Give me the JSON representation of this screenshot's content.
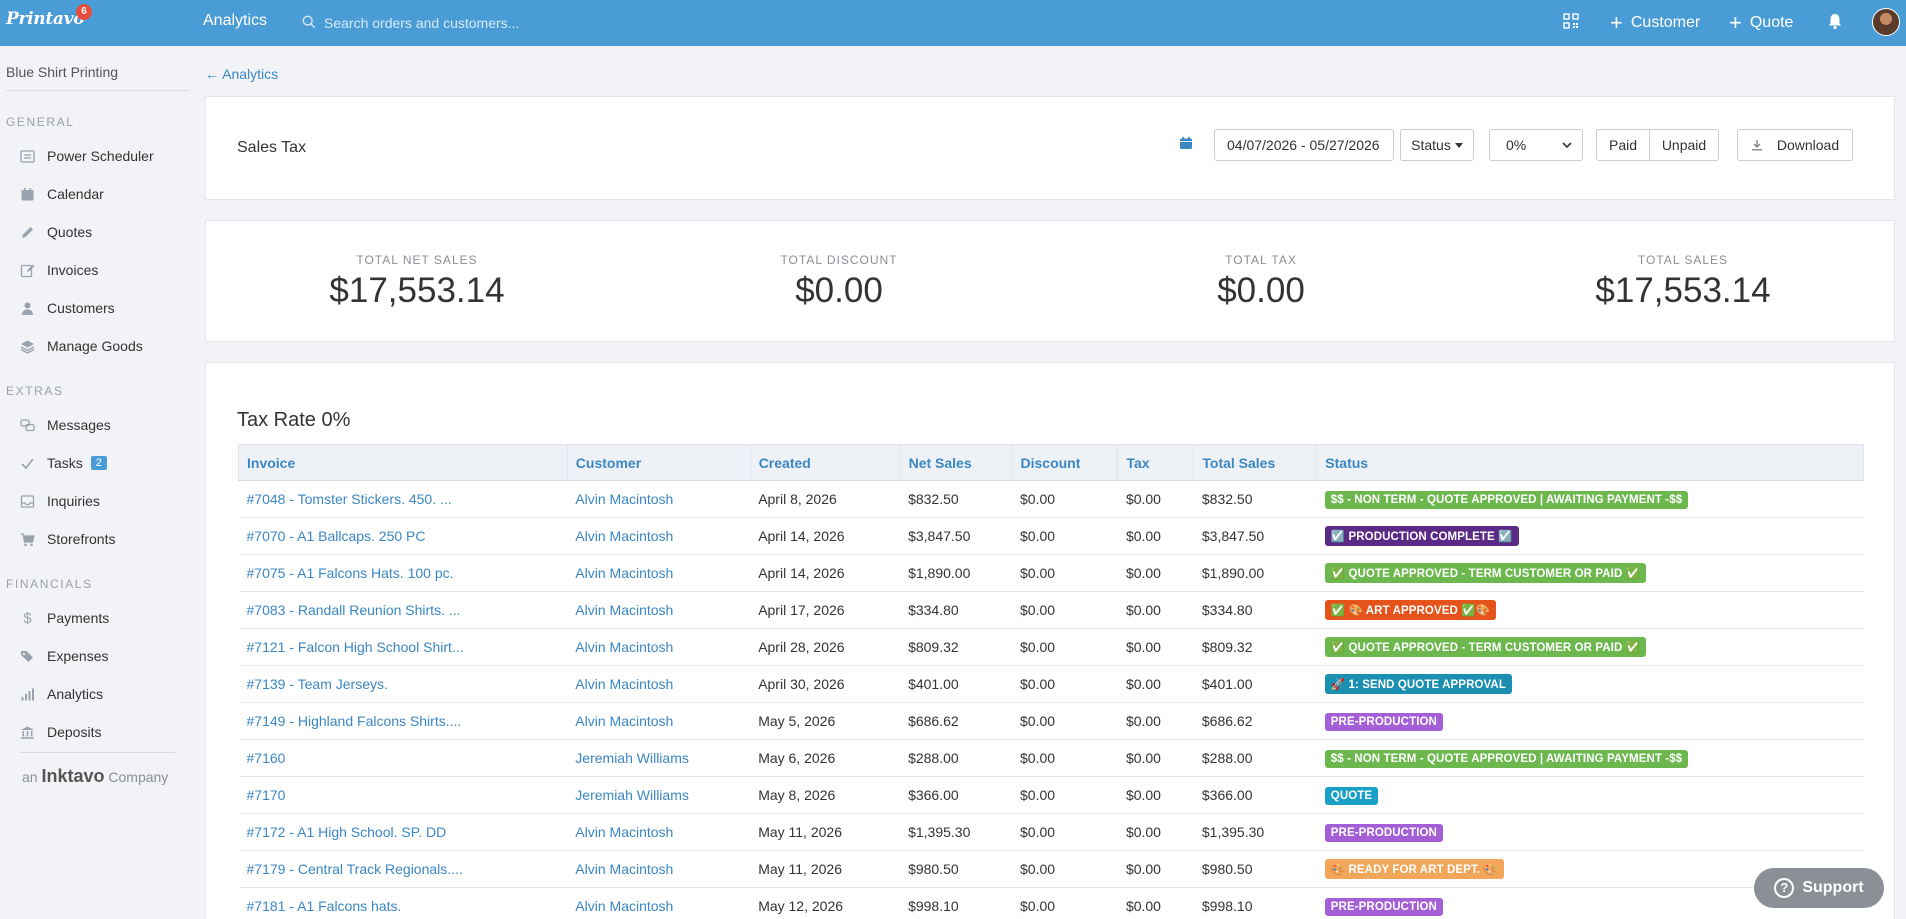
{
  "topbar": {
    "logo_text": "Printavo",
    "logo_badge": "6",
    "title": "Analytics",
    "search_placeholder": "Search orders and customers...",
    "customer_label": "Customer",
    "quote_label": "Quote"
  },
  "sidebar": {
    "org_name": "Blue Shirt Printing",
    "general_heading": "GENERAL",
    "general_items": [
      "Power Scheduler",
      "Calendar",
      "Quotes",
      "Invoices",
      "Customers",
      "Manage Goods"
    ],
    "extras_heading": "EXTRAS",
    "extras_items": [
      "Messages",
      "Tasks",
      "Inquiries",
      "Storefronts"
    ],
    "tasks_badge": "2",
    "financials_heading": "FINANCIALS",
    "financials_items": [
      "Payments",
      "Expenses",
      "Analytics",
      "Deposits"
    ],
    "company_prefix": "an",
    "company_name": "Inktavo",
    "company_suffix": "Company"
  },
  "back_link": "← Analytics",
  "header": {
    "title": "Sales Tax",
    "date_range": "04/07/2026 - 05/27/2026",
    "status_label": "Status",
    "tax_select_value": "0%",
    "paid_label": "Paid",
    "unpaid_label": "Unpaid",
    "download_label": "Download"
  },
  "totals": [
    {
      "label": "TOTAL NET SALES",
      "value": "$17,553.14"
    },
    {
      "label": "TOTAL DISCOUNT",
      "value": "$0.00"
    },
    {
      "label": "TOTAL TAX",
      "value": "$0.00"
    },
    {
      "label": "TOTAL SALES",
      "value": "$17,553.14"
    }
  ],
  "table": {
    "title": "Tax Rate 0%",
    "columns": [
      "Invoice",
      "Customer",
      "Created",
      "Net Sales",
      "Discount",
      "Tax",
      "Total Sales",
      "Status"
    ],
    "rows": [
      {
        "invoice": "#7048 - Tomster Stickers. 450. ...",
        "customer": "Alvin Macintosh",
        "created": "April 8, 2026",
        "net": "$832.50",
        "discount": "$0.00",
        "tax": "$0.00",
        "total": "$832.50",
        "status": "$$ - NON TERM - QUOTE APPROVED | AWAITING PAYMENT -$$",
        "status_color": "#6cb84e"
      },
      {
        "invoice": "#7070 - A1 Ballcaps. 250 PC",
        "customer": "Alvin Macintosh",
        "created": "April 14, 2026",
        "net": "$3,847.50",
        "discount": "$0.00",
        "tax": "$0.00",
        "total": "$3,847.50",
        "status": "☑️ PRODUCTION COMPLETE ☑️",
        "status_color": "#5b2a86"
      },
      {
        "invoice": "#7075 - A1 Falcons Hats. 100 pc.",
        "customer": "Alvin Macintosh",
        "created": "April 14, 2026",
        "net": "$1,890.00",
        "discount": "$0.00",
        "tax": "$0.00",
        "total": "$1,890.00",
        "status": "✅ QUOTE APPROVED - TERM CUSTOMER OR PAID ✅",
        "status_color": "#6cb84e"
      },
      {
        "invoice": "#7083 - Randall Reunion Shirts. ...",
        "customer": "Alvin Macintosh",
        "created": "April 17, 2026",
        "net": "$334.80",
        "discount": "$0.00",
        "tax": "$0.00",
        "total": "$334.80",
        "status": "✅ 🎨 ART APPROVED ✅🎨",
        "status_color": "#e5531a"
      },
      {
        "invoice": "#7121 - Falcon High School Shirt...",
        "customer": "Alvin Macintosh",
        "created": "April 28, 2026",
        "net": "$809.32",
        "discount": "$0.00",
        "tax": "$0.00",
        "total": "$809.32",
        "status": "✅ QUOTE APPROVED - TERM CUSTOMER OR PAID ✅",
        "status_color": "#6cb84e"
      },
      {
        "invoice": "#7139 - Team Jerseys.",
        "customer": "Alvin Macintosh",
        "created": "April 30, 2026",
        "net": "$401.00",
        "discount": "$0.00",
        "tax": "$0.00",
        "total": "$401.00",
        "status": "🚀 1: SEND QUOTE APPROVAL",
        "status_color": "#1a8fb0"
      },
      {
        "invoice": "#7149 - Highland Falcons Shirts....",
        "customer": "Alvin Macintosh",
        "created": "May 5, 2026",
        "net": "$686.62",
        "discount": "$0.00",
        "tax": "$0.00",
        "total": "$686.62",
        "status": "PRE-PRODUCTION",
        "status_color": "#a55fd6"
      },
      {
        "invoice": "#7160",
        "customer": "Jeremiah Williams",
        "created": "May 6, 2026",
        "net": "$288.00",
        "discount": "$0.00",
        "tax": "$0.00",
        "total": "$288.00",
        "status": "$$ - NON TERM - QUOTE APPROVED | AWAITING PAYMENT -$$",
        "status_color": "#6cb84e"
      },
      {
        "invoice": "#7170",
        "customer": "Jeremiah Williams",
        "created": "May 8, 2026",
        "net": "$366.00",
        "discount": "$0.00",
        "tax": "$0.00",
        "total": "$366.00",
        "status": "QUOTE",
        "status_color": "#1a9fc6"
      },
      {
        "invoice": "#7172 - A1 High School. SP. DD",
        "customer": "Alvin Macintosh",
        "created": "May 11, 2026",
        "net": "$1,395.30",
        "discount": "$0.00",
        "tax": "$0.00",
        "total": "$1,395.30",
        "status": "PRE-PRODUCTION",
        "status_color": "#a55fd6"
      },
      {
        "invoice": "#7179 - Central Track Regionals....",
        "customer": "Alvin Macintosh",
        "created": "May 11, 2026",
        "net": "$980.50",
        "discount": "$0.00",
        "tax": "$0.00",
        "total": "$980.50",
        "status": "🎨 READY FOR ART DEPT. 🎨",
        "status_color": "#f2a65a"
      },
      {
        "invoice": "#7181 - A1 Falcons hats.",
        "customer": "Alvin Macintosh",
        "created": "May 12, 2026",
        "net": "$998.10",
        "discount": "$0.00",
        "tax": "$0.00",
        "total": "$998.10",
        "status": "PRE-PRODUCTION",
        "status_color": "#a55fd6"
      }
    ]
  },
  "support_label": "Support",
  "colors": {
    "topbar": "#4a9cd6",
    "link": "#3b87c4"
  }
}
